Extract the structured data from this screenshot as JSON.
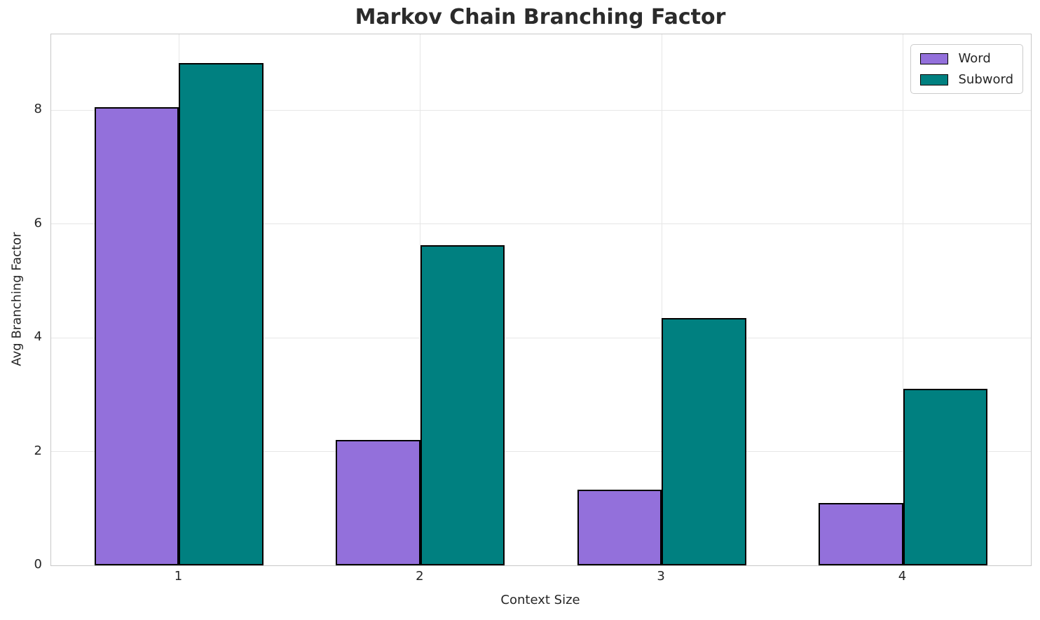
{
  "chart_data": {
    "type": "bar",
    "title": "Markov Chain Branching Factor",
    "xlabel": "Context Size",
    "ylabel": "Avg Branching Factor",
    "categories": [
      "1",
      "2",
      "3",
      "4"
    ],
    "x_positions": [
      1,
      2,
      3,
      4
    ],
    "series": [
      {
        "name": "Word",
        "color": "#9370DB",
        "values": [
          8.05,
          2.2,
          1.33,
          1.1
        ]
      },
      {
        "name": "Subword",
        "color": "#008080",
        "values": [
          8.82,
          5.62,
          4.35,
          3.1
        ]
      }
    ],
    "yticks": [
      "0",
      "2",
      "4",
      "6",
      "8"
    ],
    "ytick_values": [
      0,
      2,
      4,
      6,
      8
    ],
    "ylim": [
      0,
      9.33
    ],
    "xlim": [
      0.47,
      4.53
    ],
    "bar_width": 0.35,
    "bar_edge_color": "#000000",
    "grid": true,
    "grid_color": "#e6e6e6",
    "spine_color": "#c8c8c8",
    "text_color": "#262626",
    "legend": {
      "position": "upper right",
      "entries": [
        "Word",
        "Subword"
      ]
    }
  }
}
